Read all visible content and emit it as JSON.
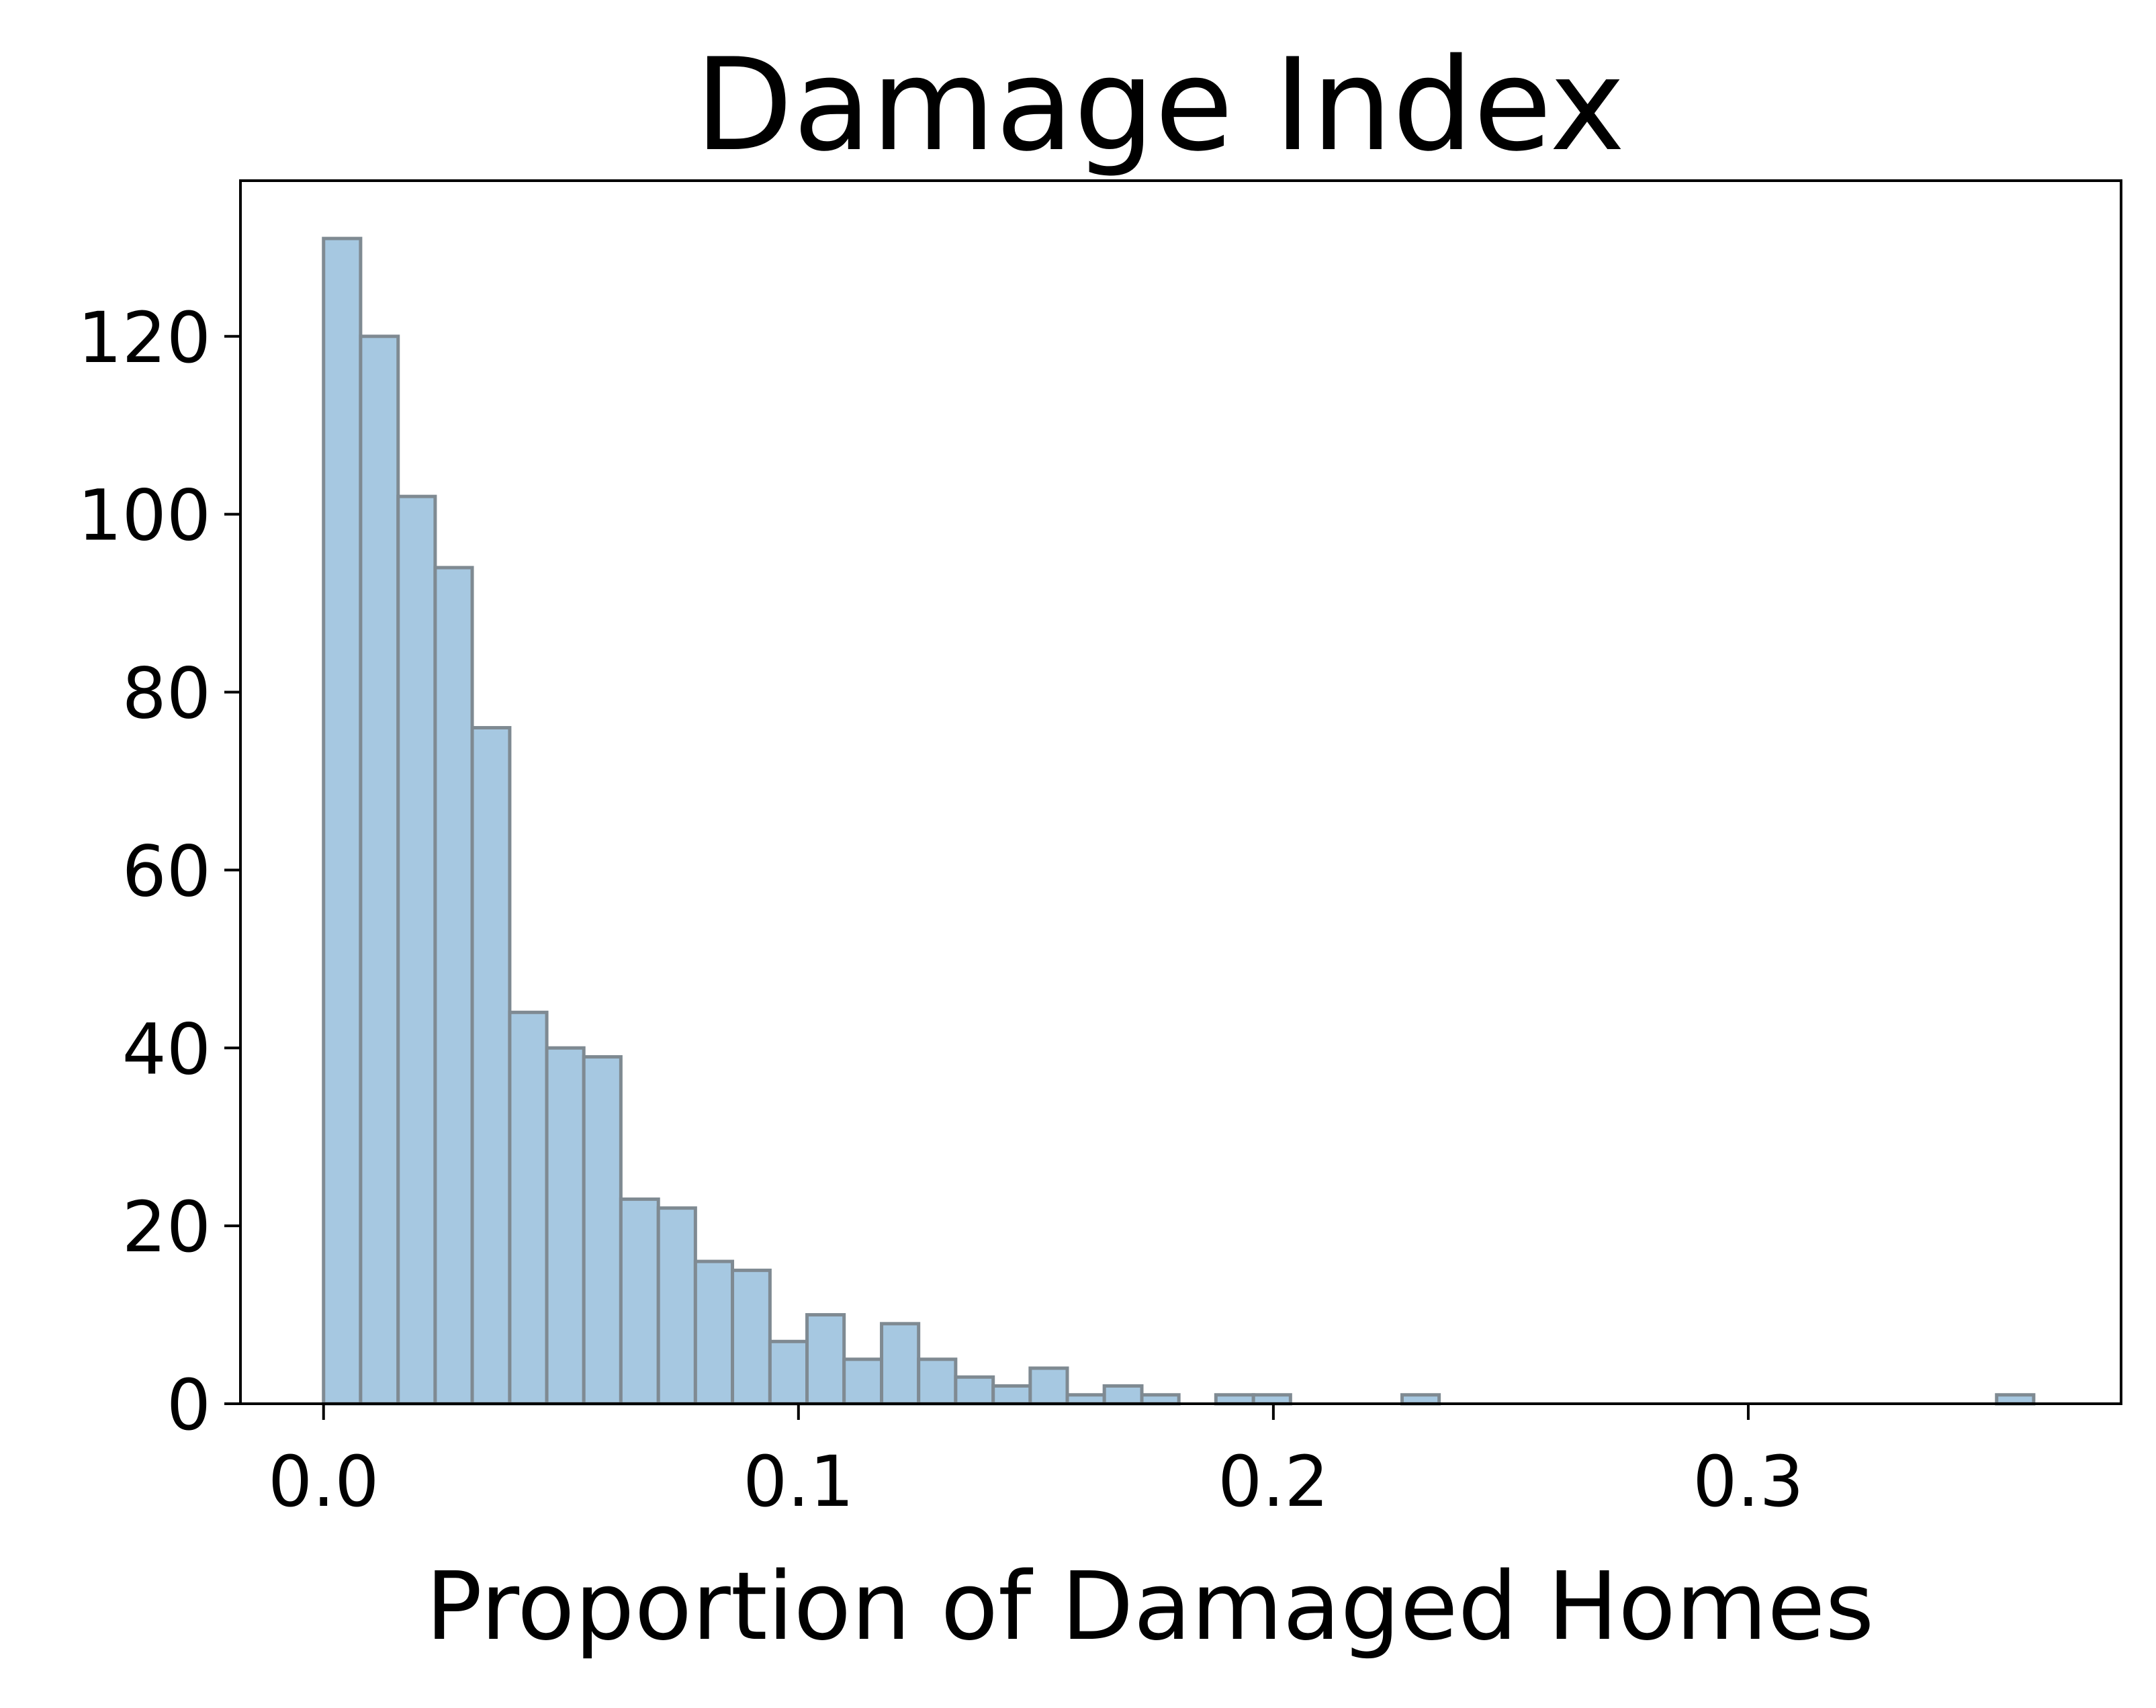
{
  "chart_data": {
    "type": "bar",
    "title": "Damage Index",
    "xlabel": "Proportion of Damaged Homes",
    "ylabel": "",
    "xlim": [
      -0.0175,
      0.3785
    ],
    "ylim": [
      0,
      137.5
    ],
    "bin_width": 0.00783,
    "bins": [
      {
        "x0": 0.0,
        "x1": 0.0078,
        "count": 131
      },
      {
        "x0": 0.0078,
        "x1": 0.0157,
        "count": 120
      },
      {
        "x0": 0.0157,
        "x1": 0.0235,
        "count": 102
      },
      {
        "x0": 0.0235,
        "x1": 0.0313,
        "count": 94
      },
      {
        "x0": 0.0313,
        "x1": 0.0392,
        "count": 76
      },
      {
        "x0": 0.0392,
        "x1": 0.047,
        "count": 44
      },
      {
        "x0": 0.047,
        "x1": 0.0548,
        "count": 40
      },
      {
        "x0": 0.0548,
        "x1": 0.0626,
        "count": 39
      },
      {
        "x0": 0.0626,
        "x1": 0.0705,
        "count": 23
      },
      {
        "x0": 0.0705,
        "x1": 0.0783,
        "count": 22
      },
      {
        "x0": 0.0783,
        "x1": 0.0861,
        "count": 16
      },
      {
        "x0": 0.0861,
        "x1": 0.094,
        "count": 15
      },
      {
        "x0": 0.094,
        "x1": 0.1018,
        "count": 7
      },
      {
        "x0": 0.1018,
        "x1": 0.1096,
        "count": 10
      },
      {
        "x0": 0.1096,
        "x1": 0.1175,
        "count": 5
      },
      {
        "x0": 0.1175,
        "x1": 0.1253,
        "count": 9
      },
      {
        "x0": 0.1253,
        "x1": 0.1331,
        "count": 5
      },
      {
        "x0": 0.1331,
        "x1": 0.141,
        "count": 3
      },
      {
        "x0": 0.141,
        "x1": 0.1488,
        "count": 2
      },
      {
        "x0": 0.1488,
        "x1": 0.1566,
        "count": 4
      },
      {
        "x0": 0.1566,
        "x1": 0.1644,
        "count": 1
      },
      {
        "x0": 0.1644,
        "x1": 0.1723,
        "count": 2
      },
      {
        "x0": 0.1723,
        "x1": 0.1801,
        "count": 1
      },
      {
        "x0": 0.1879,
        "x1": 0.1958,
        "count": 1
      },
      {
        "x0": 0.1958,
        "x1": 0.2036,
        "count": 1
      },
      {
        "x0": 0.2271,
        "x1": 0.2349,
        "count": 1
      },
      {
        "x0": 0.3523,
        "x1": 0.3601,
        "count": 1
      }
    ],
    "xticks": [
      {
        "value": 0.0,
        "label": "0.0"
      },
      {
        "value": 0.1,
        "label": "0.1"
      },
      {
        "value": 0.2,
        "label": "0.2"
      },
      {
        "value": 0.3,
        "label": "0.3"
      }
    ],
    "yticks": [
      {
        "value": 0,
        "label": "0"
      },
      {
        "value": 20,
        "label": "20"
      },
      {
        "value": 40,
        "label": "40"
      },
      {
        "value": 60,
        "label": "60"
      },
      {
        "value": 80,
        "label": "80"
      },
      {
        "value": 100,
        "label": "100"
      },
      {
        "value": 120,
        "label": "120"
      }
    ],
    "grid": false,
    "legend": "none",
    "colors": {
      "bar_fill": "#a6c8e1",
      "bar_edge": "#7f8a92",
      "axis": "#000000"
    }
  }
}
